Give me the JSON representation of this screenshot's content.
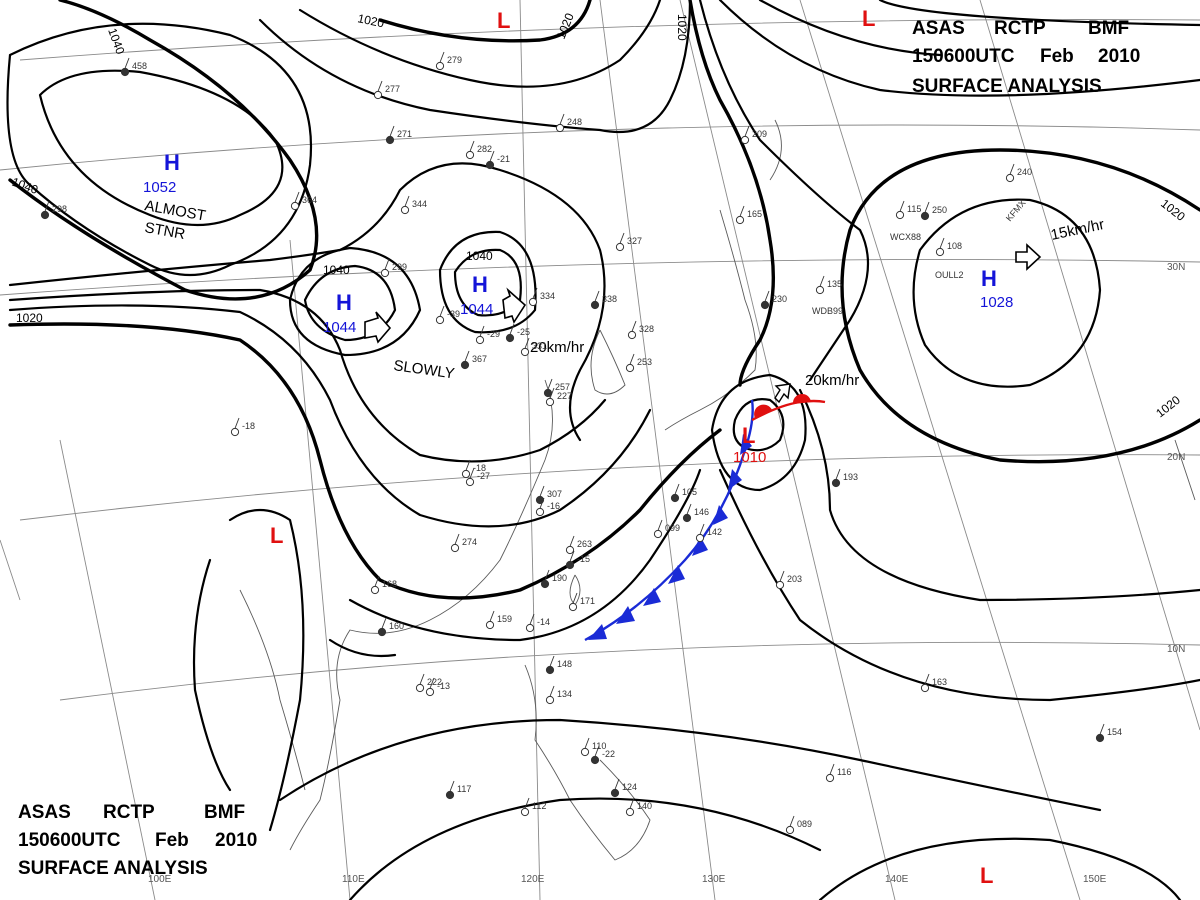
{
  "header": {
    "line1": [
      "ASAS",
      "RCTP",
      "BMF"
    ],
    "line2": [
      "150600UTC",
      "Feb",
      "2010"
    ],
    "line3": "SURFACE  ANALYSIS"
  },
  "isobar_labels": [
    "1040",
    "1020",
    "1020",
    "1020",
    "1040",
    "1020",
    "1020",
    "1040",
    "1040"
  ],
  "pressure_systems": [
    {
      "type": "H",
      "value": "1052"
    },
    {
      "type": "H",
      "value": "1044"
    },
    {
      "type": "H",
      "value": "1044"
    },
    {
      "type": "H",
      "value": "1028"
    },
    {
      "type": "L",
      "value": "1010"
    },
    {
      "type": "L",
      "value": ""
    },
    {
      "type": "L",
      "value": ""
    },
    {
      "type": "L",
      "value": ""
    },
    {
      "type": "L",
      "value": ""
    }
  ],
  "annotations": {
    "almost": "ALMOST",
    "stnr": "STNR",
    "slowly": "SLOWLY",
    "speed_mainland": "20km/hr",
    "speed_low": "20km/hr",
    "speed_pacific": "15km/hr"
  },
  "lon_labels": [
    "110E",
    "120E",
    "130E",
    "140E",
    "150E",
    "100E"
  ],
  "lat_labels": [
    "30N",
    "20N",
    "10N"
  ],
  "ship_ids": [
    "WCX88",
    "OULL2",
    "WDB99",
    "KFMX"
  ],
  "station_obs": [
    "458",
    "277",
    "279",
    "271",
    "248",
    "282",
    "-21",
    "344",
    "364",
    "298",
    "299",
    "327",
    "338",
    "334",
    "-29",
    "-25",
    "331",
    "-39",
    "367",
    "328",
    "253",
    "257",
    "227",
    "-18",
    "307",
    "274",
    "263",
    "190",
    "171",
    "159",
    "160",
    "168",
    "222",
    "148",
    "134",
    "110",
    "124",
    "140",
    "112",
    "117",
    "108",
    "115",
    "250",
    "240",
    "135",
    "230",
    "165",
    "209",
    "193",
    "203",
    "163",
    "154",
    "116",
    "089",
    "105",
    "099",
    "142",
    "146",
    "-27",
    "-16",
    "-15",
    "-14",
    "-13",
    "-22",
    "-18"
  ],
  "colors": {
    "high": "#1414d8",
    "low": "#e01010",
    "cold_front": "#1a2bd6",
    "warm_front": "#e01010",
    "isobar": "#000000",
    "graticule": "#8a8a8a"
  }
}
